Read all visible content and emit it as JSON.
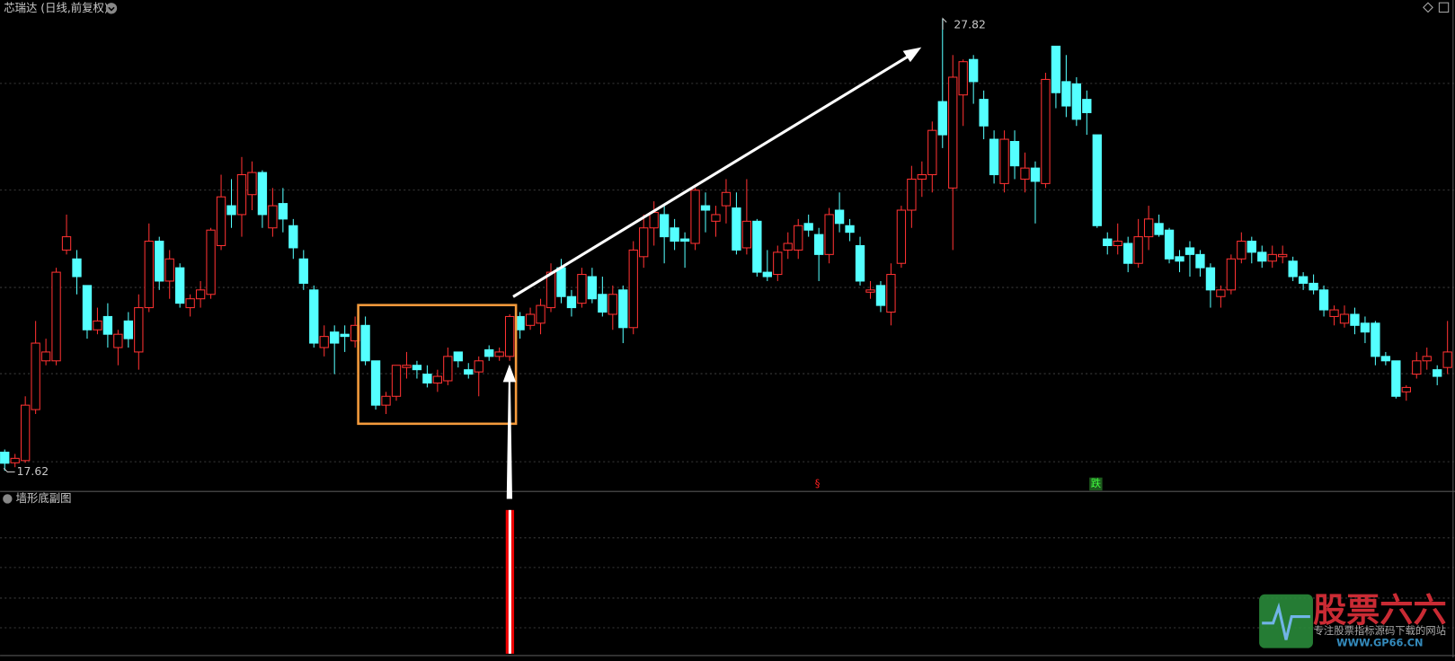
{
  "chart_data": {
    "type": "candlestick",
    "title": "芯瑞达 (日线,前复权)",
    "subchart_title": "墙形底副图",
    "up_color": "#ff3232",
    "down_color": "#54ffff",
    "ylim": [
      17.3,
      28.2
    ],
    "annotations": [
      {
        "text": "§",
        "color": "#ff2020"
      },
      {
        "text": "跌",
        "color": "#40ff40"
      }
    ],
    "watermark": {
      "title": "股票六六",
      "subtitle": "专注股票指标源码下载的网站",
      "url": "WWW.GP66.CN"
    },
    "series": [
      {
        "open": [
          18.04,
          17.8,
          17.85,
          19.0,
          20.1,
          20.1,
          22.6,
          22.4,
          21.8,
          20.8,
          21.1,
          20.4,
          21.0,
          20.3,
          21.3,
          22.8,
          21.9,
          22.2,
          21.3,
          21.5,
          21.6,
          22.7,
          23.6,
          23.4,
          23.85,
          24.35,
          23.1,
          23.65,
          23.15,
          22.4,
          21.7,
          20.4,
          20.75,
          20.7,
          20.55,
          20.9,
          20.1,
          19.1,
          19.3,
          19.95,
          20.0,
          19.8,
          19.6,
          19.65,
          20.3,
          19.9,
          19.85,
          20.35,
          20.2,
          20.2,
          21.1,
          20.9,
          20.95,
          21.3,
          22.2,
          21.55,
          21.4,
          22.0,
          21.6,
          21.15,
          21.7,
          20.85,
          22.45,
          23.1,
          23.4,
          23.1,
          22.85,
          22.75,
          23.6,
          23.25,
          23.6,
          23.55,
          22.65,
          23.25,
          22.1,
          22.05,
          22.6,
          22.6,
          23.2,
          22.95,
          22.5,
          23.5,
          23.15,
          22.7,
          21.65,
          21.8,
          21.2,
          22.3,
          23.5,
          24.2,
          24.3,
          25.95,
          24.0,
          26.1,
          26.9,
          26.0,
          25.1,
          24.1,
          25.05,
          24.2,
          24.45,
          24.1,
          27.2,
          26.4,
          26.35,
          26.0,
          25.2,
          22.85,
          22.7,
          22.75,
          22.3,
          22.9,
          23.2,
          23.05,
          22.45,
          22.65,
          22.5,
          22.2,
          21.55,
          21.7,
          22.4,
          22.8,
          22.55,
          22.35,
          22.45,
          22.35,
          22.0,
          21.85,
          21.7,
          21.1,
          20.95,
          21.15,
          20.95,
          20.95,
          20.2,
          20.1,
          19.4,
          19.8,
          20.1,
          19.9,
          19.95
        ],
        "high": [
          18.1,
          18.0,
          19.3,
          21.0,
          20.6,
          22.2,
          23.4,
          22.6,
          21.8,
          21.3,
          21.4,
          20.8,
          21.2,
          21.6,
          23.2,
          22.9,
          22.6,
          22.3,
          21.6,
          21.9,
          23.1,
          24.3,
          24.2,
          24.7,
          24.6,
          24.4,
          24.0,
          24.0,
          23.3,
          22.6,
          21.8,
          20.9,
          20.9,
          20.9,
          21.1,
          21.1,
          20.1,
          19.4,
          20.0,
          20.3,
          20.1,
          20.0,
          19.9,
          20.4,
          20.3,
          20.05,
          20.2,
          20.45,
          20.4,
          21.15,
          21.2,
          21.3,
          21.5,
          22.3,
          22.4,
          21.7,
          22.2,
          22.2,
          22.0,
          21.8,
          21.8,
          22.8,
          23.4,
          23.7,
          23.6,
          23.3,
          23.0,
          24.0,
          23.9,
          23.6,
          24.2,
          23.9,
          24.2,
          23.3,
          22.6,
          22.7,
          23.0,
          23.3,
          23.4,
          23.1,
          23.55,
          23.9,
          23.3,
          22.9,
          21.9,
          21.9,
          22.3,
          23.6,
          24.5,
          24.6,
          25.5,
          27.82,
          27.0,
          26.9,
          27.0,
          26.2,
          25.3,
          25.3,
          25.3,
          24.8,
          24.6,
          26.6,
          27.2,
          27.0,
          26.5,
          26.2,
          25.2,
          23.0,
          23.2,
          22.9,
          23.3,
          23.6,
          23.4,
          23.1,
          22.6,
          22.8,
          22.6,
          22.3,
          21.8,
          22.5,
          23.0,
          22.9,
          22.7,
          22.7,
          22.7,
          22.45,
          22.1,
          22.05,
          21.8,
          21.35,
          21.35,
          21.3,
          21.1,
          21.0,
          20.3,
          20.1,
          19.55,
          20.3,
          20.4,
          20.0,
          21.0
        ],
        "low": [
          17.62,
          17.7,
          17.8,
          18.9,
          20.0,
          20.0,
          22.5,
          21.6,
          20.6,
          20.7,
          20.4,
          20.0,
          20.4,
          19.9,
          21.2,
          21.7,
          21.5,
          21.3,
          21.1,
          21.3,
          21.5,
          22.6,
          23.1,
          22.9,
          23.5,
          23.1,
          22.9,
          23.0,
          22.4,
          21.7,
          20.4,
          20.2,
          19.8,
          20.3,
          20.4,
          20.0,
          19.0,
          18.9,
          19.2,
          19.7,
          19.7,
          19.5,
          19.4,
          19.55,
          19.95,
          19.7,
          19.3,
          20.1,
          20.1,
          20.1,
          20.6,
          20.8,
          20.7,
          21.2,
          21.4,
          21.1,
          21.3,
          21.4,
          21.1,
          20.8,
          20.5,
          20.7,
          22.2,
          22.7,
          22.3,
          22.6,
          22.2,
          22.6,
          23.0,
          22.9,
          23.2,
          22.5,
          22.5,
          22.0,
          21.9,
          21.9,
          22.4,
          22.4,
          22.9,
          21.9,
          22.3,
          23.0,
          22.8,
          21.8,
          21.5,
          21.2,
          20.9,
          22.2,
          23.1,
          23.8,
          23.9,
          24.9,
          22.6,
          25.4,
          25.9,
          25.1,
          24.1,
          23.9,
          24.2,
          23.9,
          23.2,
          24.0,
          25.8,
          25.6,
          25.4,
          25.2,
          23.1,
          22.5,
          22.5,
          22.1,
          22.2,
          22.6,
          22.9,
          22.3,
          22.1,
          22.0,
          22.0,
          21.3,
          21.3,
          21.6,
          22.3,
          22.3,
          22.2,
          22.2,
          22.3,
          21.9,
          21.7,
          21.6,
          21.1,
          20.9,
          20.85,
          20.7,
          20.5,
          20.0,
          20.0,
          19.25,
          19.2,
          19.7,
          19.9,
          19.55,
          19.8
        ],
        "close": [
          17.79,
          17.9,
          19.1,
          20.5,
          20.3,
          22.1,
          22.9,
          22.0,
          20.8,
          21.0,
          20.7,
          20.7,
          20.6,
          21.3,
          22.8,
          21.9,
          22.4,
          21.4,
          21.5,
          21.7,
          23.05,
          23.8,
          23.4,
          24.3,
          24.35,
          23.4,
          23.6,
          23.3,
          22.65,
          21.85,
          20.5,
          20.65,
          20.5,
          20.65,
          20.9,
          20.1,
          19.1,
          19.3,
          20.0,
          20.0,
          19.9,
          19.6,
          19.75,
          20.2,
          20.1,
          19.8,
          20.1,
          20.2,
          20.3,
          21.1,
          20.8,
          21.15,
          21.35,
          22.1,
          21.55,
          21.3,
          22.05,
          21.5,
          21.2,
          21.6,
          20.85,
          22.6,
          23.1,
          23.45,
          22.9,
          22.8,
          22.8,
          23.95,
          23.5,
          23.4,
          23.9,
          22.6,
          23.25,
          22.1,
          22.0,
          22.55,
          22.75,
          23.15,
          23.05,
          22.5,
          23.4,
          23.2,
          23.0,
          21.9,
          21.7,
          21.35,
          22.05,
          23.5,
          24.2,
          24.3,
          25.3,
          25.2,
          26.5,
          26.85,
          26.4,
          25.4,
          24.3,
          25.1,
          24.5,
          24.45,
          24.15,
          26.45,
          26.15,
          25.85,
          25.55,
          25.7,
          23.15,
          22.7,
          22.8,
          22.3,
          22.9,
          23.3,
          22.95,
          22.4,
          22.35,
          22.5,
          22.2,
          21.7,
          21.7,
          22.4,
          22.8,
          22.55,
          22.35,
          22.5,
          22.5,
          22.0,
          21.85,
          21.7,
          21.25,
          21.25,
          21.15,
          20.9,
          20.75,
          20.2,
          20.1,
          19.3,
          19.5,
          20.1,
          20.2,
          19.75,
          20.3
        ]
      }
    ]
  }
}
